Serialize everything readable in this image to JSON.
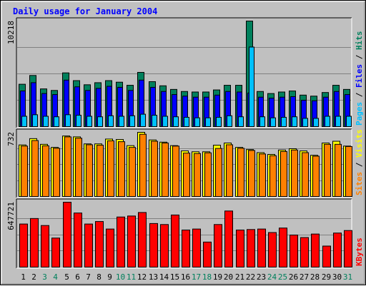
{
  "title": "Daily usage for January 2004",
  "colors": {
    "background": "#c0c0c0",
    "plot": "#c0c0c0",
    "hits": "#00805c",
    "files": "#0000ff",
    "pages": "#00c0ff",
    "visits": "#ffff00",
    "sites": "#ff8000",
    "kbytes": "#ff0000",
    "weekday_label": "#000000",
    "weekend_label": "#00805c"
  },
  "legends": {
    "top": [
      {
        "text": "Pages",
        "color": "#00c0ff"
      },
      {
        "text": " / ",
        "color": "#000000"
      },
      {
        "text": "Files",
        "color": "#0000ff"
      },
      {
        "text": " / ",
        "color": "#000000"
      },
      {
        "text": "Hits",
        "color": "#00805c"
      }
    ],
    "middle": [
      {
        "text": "Sites",
        "color": "#ff8000"
      },
      {
        "text": " / ",
        "color": "#000000"
      },
      {
        "text": "Visits",
        "color": "#ffff00"
      }
    ],
    "bottom": [
      {
        "text": "KBytes",
        "color": "#ff0000"
      }
    ]
  },
  "axis_max_labels": {
    "top": "10218",
    "middle": "732",
    "bottom": "647721"
  },
  "chart_data": [
    {
      "type": "bar",
      "title": "Daily usage for January 2004",
      "categories": [
        "1",
        "2",
        "3",
        "4",
        "5",
        "6",
        "7",
        "8",
        "9",
        "10",
        "11",
        "12",
        "13",
        "14",
        "15",
        "16",
        "17",
        "18",
        "19",
        "20",
        "21",
        "22",
        "23",
        "24",
        "25",
        "26",
        "27",
        "28",
        "29",
        "30",
        "31"
      ],
      "weekend_days": [
        "3",
        "4",
        "10",
        "11",
        "17",
        "18",
        "24",
        "25",
        "31"
      ],
      "ylim": [
        0,
        10218
      ],
      "ylabel": "Pages / Files / Hits",
      "series": [
        {
          "name": "Hits",
          "values": [
            4100,
            4950,
            3650,
            3500,
            5200,
            4450,
            4050,
            4250,
            4450,
            4300,
            4000,
            5250,
            4350,
            3950,
            3600,
            3400,
            3350,
            3350,
            3550,
            4000,
            4000,
            10218,
            3400,
            3200,
            3350,
            3450,
            3050,
            2950,
            3300,
            4000,
            3600
          ]
        },
        {
          "name": "Files",
          "values": [
            3450,
            4250,
            3200,
            3100,
            4500,
            3850,
            3500,
            3700,
            3900,
            3800,
            3500,
            4500,
            3800,
            3400,
            3100,
            2950,
            2850,
            2850,
            3050,
            3400,
            3350,
            3250,
            2850,
            2750,
            2850,
            2900,
            2550,
            2500,
            2850,
            3400,
            3100
          ]
        },
        {
          "name": "Pages",
          "values": [
            1000,
            1150,
            1000,
            950,
            1150,
            1100,
            1000,
            950,
            1050,
            1000,
            1050,
            1200,
            1100,
            1000,
            950,
            900,
            850,
            850,
            900,
            1050,
            950,
            7700,
            950,
            850,
            900,
            950,
            800,
            800,
            1000,
            1000,
            1000
          ]
        }
      ]
    },
    {
      "type": "bar",
      "categories": [
        "1",
        "2",
        "3",
        "4",
        "5",
        "6",
        "7",
        "8",
        "9",
        "10",
        "11",
        "12",
        "13",
        "14",
        "15",
        "16",
        "17",
        "18",
        "19",
        "20",
        "21",
        "22",
        "23",
        "24",
        "25",
        "26",
        "27",
        "28",
        "29",
        "30",
        "31"
      ],
      "ylim": [
        0,
        732
      ],
      "ylabel": "Sites / Visits",
      "series": [
        {
          "name": "Visits",
          "values": [
            588,
            660,
            595,
            560,
            690,
            680,
            600,
            600,
            655,
            650,
            580,
            732,
            645,
            620,
            580,
            520,
            510,
            510,
            585,
            610,
            560,
            535,
            500,
            480,
            530,
            545,
            520,
            470,
            610,
            630,
            575
          ]
        },
        {
          "name": "Sites",
          "values": [
            575,
            638,
            578,
            550,
            680,
            665,
            590,
            585,
            635,
            625,
            560,
            710,
            630,
            610,
            575,
            495,
            490,
            498,
            548,
            590,
            550,
            525,
            485,
            465,
            513,
            530,
            500,
            460,
            595,
            595,
            570
          ]
        }
      ]
    },
    {
      "type": "bar",
      "categories": [
        "1",
        "2",
        "3",
        "4",
        "5",
        "6",
        "7",
        "8",
        "9",
        "10",
        "11",
        "12",
        "13",
        "14",
        "15",
        "16",
        "17",
        "18",
        "19",
        "20",
        "21",
        "22",
        "23",
        "24",
        "25",
        "26",
        "27",
        "28",
        "29",
        "30",
        "31"
      ],
      "ylim": [
        0,
        647721
      ],
      "ylabel": "KBytes",
      "series": [
        {
          "name": "KBytes",
          "values": [
            430000,
            485000,
            415000,
            290000,
            647721,
            540000,
            430000,
            455000,
            380000,
            500000,
            510000,
            545000,
            435000,
            425000,
            520000,
            370000,
            380000,
            250000,
            425000,
            560000,
            370000,
            375000,
            380000,
            345000,
            390000,
            320000,
            295000,
            330000,
            210000,
            340000,
            365000
          ]
        }
      ]
    }
  ]
}
